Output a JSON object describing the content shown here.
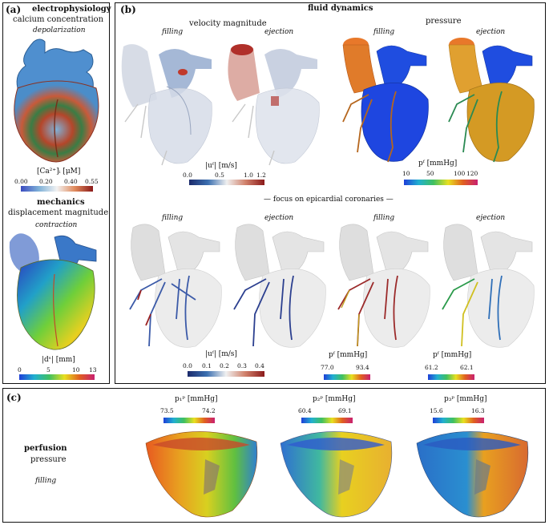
{
  "panel_a": {
    "tag": "(a)",
    "ep_title": "electrophysiology",
    "ep_subtitle": "calcium concentration",
    "ep_phase": "depolarization",
    "ep_unit": "[Ca²⁺]ᵢ [μM]",
    "ep_ticks": [
      "0.00",
      "0.20",
      "0.40",
      "0.55"
    ],
    "mech_title": "mechanics",
    "mech_subtitle": "displacement magnitude",
    "mech_phase": "contraction",
    "mech_unit": "|dˢ| [mm]",
    "mech_ticks": [
      "0",
      "5",
      "10",
      "13"
    ]
  },
  "panel_b": {
    "tag": "(b)",
    "title": "fluid dynamics",
    "velocity_title": "velocity magnitude",
    "pressure_title": "pressure",
    "phase_filling": "filling",
    "phase_ejection": "ejection",
    "vel_unit": "|uᶠ| [m/s]",
    "vel_ticks": [
      "0.0",
      "0.5",
      "1.0",
      "1.2"
    ],
    "pres_unit": "pᶠ [mmHg]",
    "pres_ticks": [
      "10",
      "50",
      "100",
      "120"
    ],
    "coronary_caption": "— focus on epicardial coronaries —",
    "cor_vel_unit": "|uᶠ| [m/s]",
    "cor_vel_ticks": [
      "0.0",
      "0.1",
      "0.2",
      "0.3",
      "0.4"
    ],
    "cor_pres_fill_unit": "pᶠ [mmHg]",
    "cor_pres_fill_ticks": [
      "77.0",
      "93.4"
    ],
    "cor_pres_ej_unit": "pᶠ [mmHg]",
    "cor_pres_ej_ticks": [
      "61.2",
      "62.1"
    ]
  },
  "panel_c": {
    "tag": "(c)",
    "title": "perfusion",
    "subtitle": "pressure",
    "phase": "filling",
    "p1_unit": "p₁ᵖ [mmHg]",
    "p1_ticks": [
      "73.5",
      "74.2"
    ],
    "p2_unit": "p₂ᵖ [mmHg]",
    "p2_ticks": [
      "60.4",
      "69.1"
    ],
    "p3_unit": "p₃ᵖ [mmHg]",
    "p3_ticks": [
      "15.6",
      "16.3"
    ]
  },
  "colors": {
    "border": "#111111",
    "heart_blue": "#2f7fc8",
    "cavity_blue": "#1e3fd8",
    "aorta_orange": "#e8782a",
    "coronary_brown": "#b5661d",
    "coronary_green": "#2a8a52",
    "ghost_gray": "#d9d9d9"
  }
}
